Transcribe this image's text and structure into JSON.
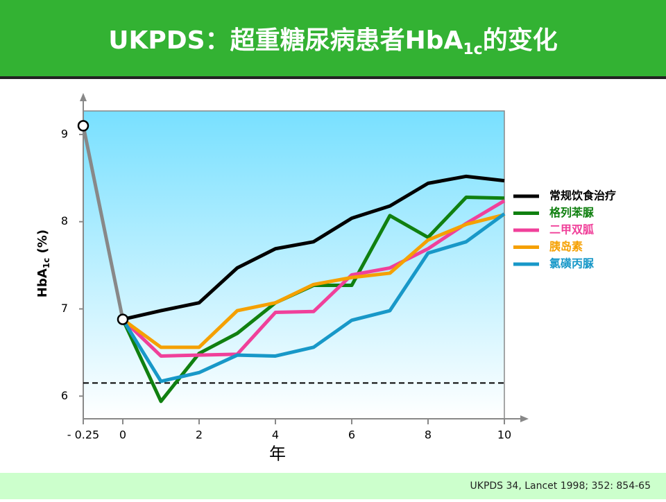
{
  "chart_data": {
    "type": "line",
    "title": [
      "UKPDS：超重糖尿病患者HbA",
      "1c",
      "的变化"
    ],
    "ylabel": [
      "HbA",
      "1c",
      " (%)"
    ],
    "xlabel": "年",
    "citation": "UKPDS 34, Lancet 1998; 352: 854-65",
    "xlim": [
      -0.25,
      10
    ],
    "ylim": [
      5.74,
      9.27
    ],
    "xticks": [
      {
        "value": -0.25,
        "label": "- 0.25"
      },
      0,
      2,
      4,
      6,
      8,
      10
    ],
    "yticks": [
      6,
      7,
      8,
      9
    ],
    "reference_line": 6.15,
    "baseline": {
      "x": [
        -0.25,
        0
      ],
      "values": [
        9.1,
        6.88
      ],
      "color": "#888888"
    },
    "x": [
      0,
      1,
      2,
      3,
      4,
      5,
      6,
      7,
      8,
      9,
      10
    ],
    "series": [
      {
        "name": "常规饮食治疗",
        "color": "#000000",
        "values": [
          6.88,
          6.98,
          7.07,
          7.47,
          7.69,
          7.77,
          8.04,
          8.18,
          8.44,
          8.52,
          8.47
        ]
      },
      {
        "name": "格列苯脲",
        "color": "#108010",
        "values": [
          6.88,
          5.94,
          6.49,
          6.72,
          7.07,
          7.27,
          7.27,
          8.07,
          7.82,
          8.28,
          8.27
        ]
      },
      {
        "name": "二甲双胍",
        "color": "#f0409a",
        "values": [
          6.88,
          6.46,
          6.47,
          6.48,
          6.96,
          6.97,
          7.39,
          7.47,
          7.69,
          7.98,
          8.24
        ]
      },
      {
        "name": "胰岛素",
        "color": "#f5a000",
        "values": [
          6.88,
          6.56,
          6.56,
          6.98,
          7.07,
          7.28,
          7.36,
          7.41,
          7.79,
          7.97,
          8.08
        ]
      },
      {
        "name": "氯磺丙脲",
        "color": "#1898c8",
        "values": [
          6.88,
          6.17,
          6.27,
          6.47,
          6.46,
          6.56,
          6.87,
          6.98,
          7.64,
          7.77,
          8.09
        ]
      }
    ]
  }
}
